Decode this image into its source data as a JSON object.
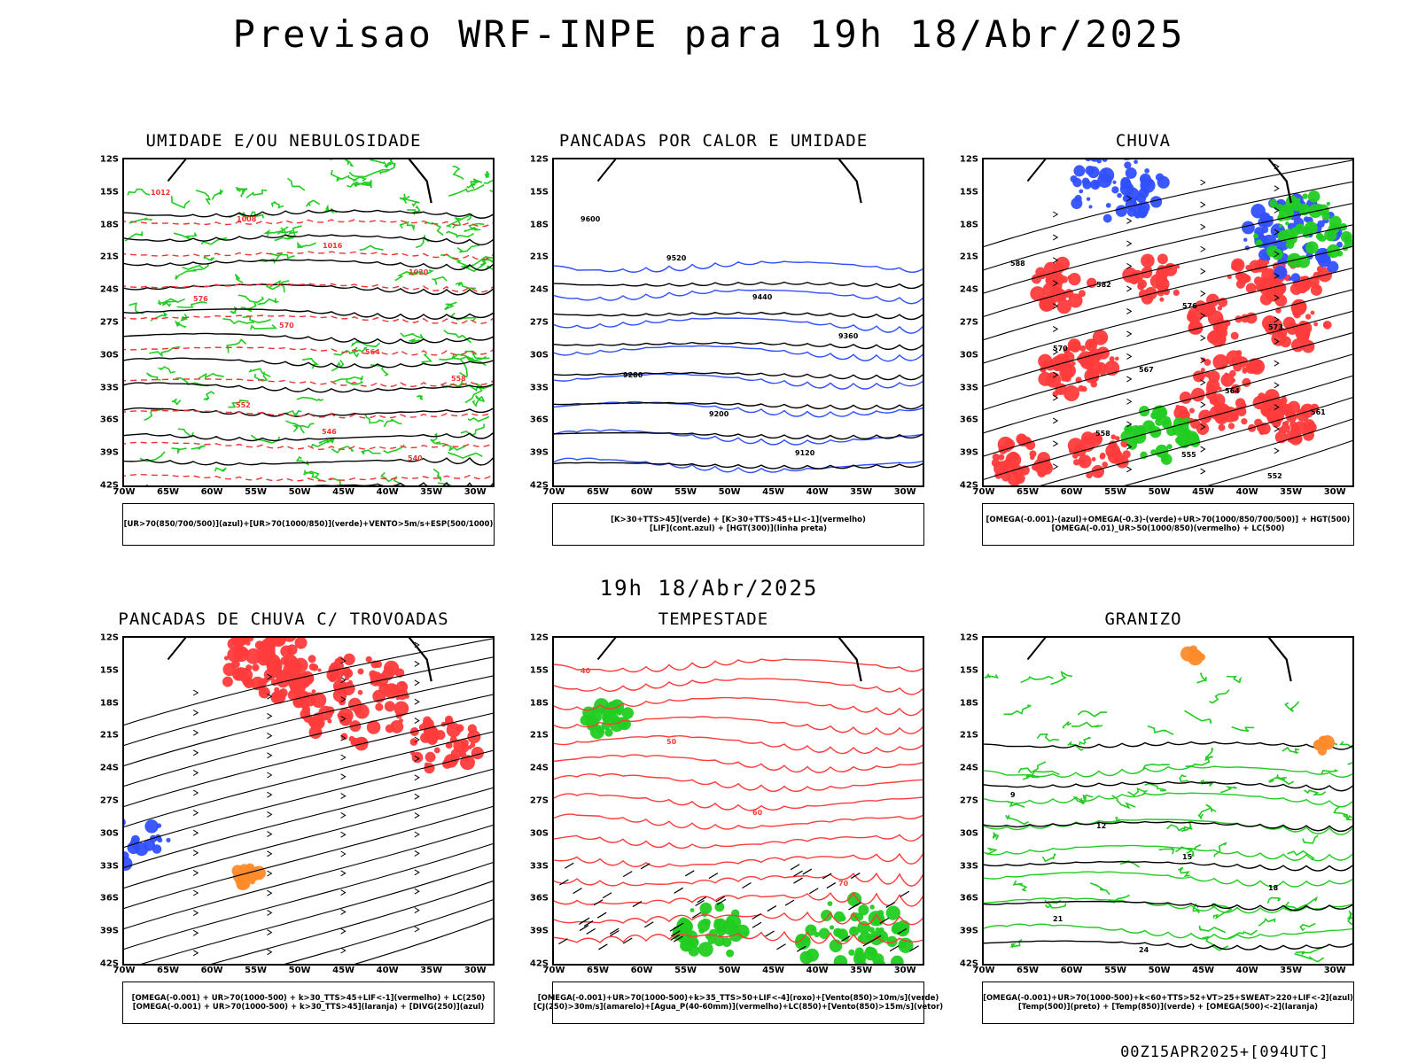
{
  "header": {
    "title": "Previsao WRF-INPE  para 19h 18/Abr/2025"
  },
  "middle_title": "19h 18/Abr/2025",
  "footer": "00Z15APR2025+[094UTC]",
  "axes": {
    "lat_labels": [
      "12S",
      "15S",
      "18S",
      "21S",
      "24S",
      "27S",
      "30S",
      "33S",
      "36S",
      "39S",
      "42S"
    ],
    "lon_labels": [
      "70W",
      "65W",
      "60W",
      "55W",
      "50W",
      "45W",
      "40W",
      "35W",
      "30W"
    ]
  },
  "colors": {
    "red": "#ff3b3b",
    "green": "#22cc22",
    "blue": "#3050ff",
    "lavender": "#9a9af0",
    "yellow": "#e6dc28",
    "dark_teal": "#1e4a46",
    "orange": "#ff8a2a",
    "black": "#000000"
  },
  "panels": [
    {
      "id": "umidade",
      "title": "UMIDADE E/OU NEBULOSIDADE",
      "legend": [
        "[UR>70(850/700/500)](azul)+[UR>70(1000/850)](verde)+VENTO>5m/s+ESP(500/1000)"
      ],
      "contour_labels": [
        "1012",
        "1008",
        "1016",
        "1020",
        "576",
        "570",
        "564",
        "558",
        "552",
        "546",
        "540"
      ]
    },
    {
      "id": "pancadas-calor",
      "title": "PANCADAS POR CALOR E UMIDADE",
      "legend": [
        "[K>30+TTS>45](verde) + [K>30+TTS>45+LI<-1](vermelho)",
        "[LIF](cont.azul) + [HGT(300)](linha preta)"
      ],
      "contour_labels": [
        "9600",
        "9520",
        "9440",
        "9360",
        "9280",
        "9200",
        "9120"
      ]
    },
    {
      "id": "chuva",
      "title": "CHUVA",
      "legend": [
        "[OMEGA(-0.001)-(azul)+OMEGA(-0.3)-(verde)+UR>70(1000/850/700/500)] + HGT(500)",
        "[OMEGA(-0.01)_UR>50(1000/850)(vermelho) + LC(500)"
      ],
      "contour_labels": [
        "588",
        "582",
        "576",
        "573",
        "570",
        "567",
        "564",
        "561",
        "558",
        "555",
        "552"
      ]
    },
    {
      "id": "trovoadas",
      "title": "PANCADAS DE CHUVA C/ TROVOADAS",
      "legend": [
        "[OMEGA(-0.001) + UR>70(1000-500) + k>30_TTS>45+LIF<-1](vermelho) + LC(250)",
        "[OMEGA(-0.001) + UR>70(1000-500) + k>30_TTS>45](laranja) + [DIVG(250)](azul)"
      ],
      "contour_labels": []
    },
    {
      "id": "tempestade",
      "title": "TEMPESTADE",
      "legend": [
        "[OMEGA(-0.001)+UR>70(1000-500)+k>35_TTS>50+LIF<-4](roxo)+[Vento(850)>10m/s](verde)",
        "[CJ(250)>30m/s](amarelo)+[Agua_P(40-60mm)](vermelho)+LC(850)+[Vento(850)>15m/s](vetor)"
      ],
      "contour_labels": [
        "40",
        "50",
        "60",
        "70"
      ]
    },
    {
      "id": "granizo",
      "title": "GRANIZO",
      "legend": [
        "[OMEGA(-0.001)+UR>70(1000-500)+k<60+TTS>52+VT>25+SWEAT>220+LIF<-2](azul)",
        "[Temp(500)](preto) + [Temp(850)](verde) + [OMEGA(500)<-2](laranja)"
      ],
      "contour_labels": [
        "9",
        "12",
        "15",
        "18",
        "21",
        "24"
      ]
    }
  ]
}
